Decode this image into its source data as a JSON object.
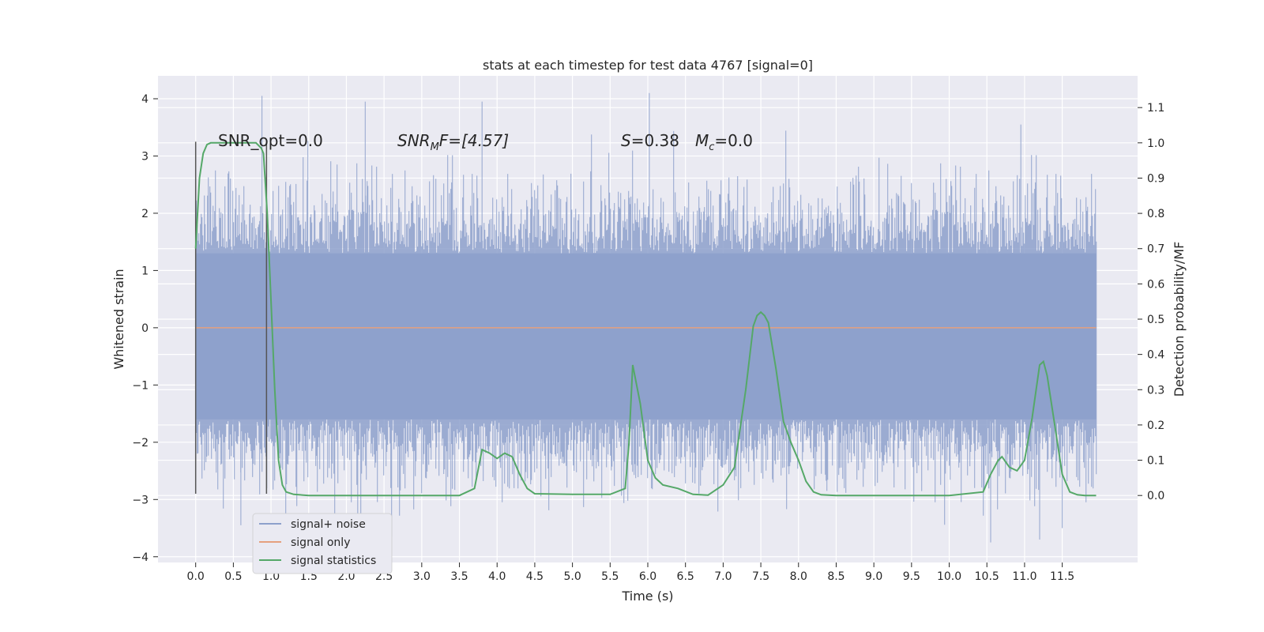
{
  "chart_data": {
    "type": "line",
    "title": "stats at each timestep for test data 4767 [signal=0]",
    "xlabel": "Time (s)",
    "ylabel": "Whitened strain",
    "y2label": "Detection probability/MF",
    "xlim": [
      -0.5,
      12.5
    ],
    "ylim": [
      -4.1,
      4.4
    ],
    "y2lim": [
      -0.19,
      1.19
    ],
    "x_ticks": [
      "0.0",
      "0.5",
      "1.0",
      "1.5",
      "2.0",
      "2.5",
      "3.0",
      "3.5",
      "4.0",
      "4.5",
      "5.0",
      "5.5",
      "6.0",
      "6.5",
      "7.0",
      "7.5",
      "8.0",
      "8.5",
      "9.0",
      "9.5",
      "10.0",
      "10.5",
      "11.0",
      "11.5"
    ],
    "y_ticks": [
      4,
      3,
      2,
      1,
      0,
      -1,
      -2,
      -3,
      -4
    ],
    "y_tick_labels": [
      "4",
      "3",
      "2",
      "1",
      "0",
      "−1",
      "−2",
      "−3",
      "−4"
    ],
    "y2_ticks": [
      1.1,
      1.0,
      0.9,
      0.8,
      0.7,
      0.6,
      0.5,
      0.4,
      0.3,
      0.2,
      0.1,
      0.0
    ],
    "y2_tick_labels": [
      "1.1",
      "1.0",
      "0.9",
      "0.8",
      "0.7",
      "0.6",
      "0.5",
      "0.4",
      "0.3",
      "0.2",
      "0.1",
      "0.0"
    ],
    "grid": true,
    "legend_position": "lower-left",
    "annotations": {
      "snr_opt": "SNR_opt=0.0",
      "snr_mf": "SNR",
      "snr_mf_sub": "M",
      "snr_mf_tail": "F=[4.57]",
      "s_label": "S",
      "s_value": "=0.38",
      "mc_label": "M",
      "mc_sub": "c",
      "mc_value": "=0.0"
    },
    "window_markers_x": [
      0.0,
      0.94
    ],
    "series": [
      {
        "name": "signal+ noise",
        "color": "#8da0cb",
        "description_range": [
          -3.7,
          4.1
        ],
        "peaks": [
          [
            0.88,
            4.05
          ],
          [
            2.25,
            3.95
          ],
          [
            3.8,
            3.95
          ],
          [
            6.02,
            4.1
          ],
          [
            10.95,
            3.55
          ],
          [
            0.6,
            -3.45
          ],
          [
            2.15,
            -3.25
          ],
          [
            2.6,
            -3.65
          ],
          [
            10.55,
            -3.75
          ],
          [
            11.2,
            -3.7
          ],
          [
            11.5,
            -3.5
          ]
        ],
        "t_range": [
          0.0,
          11.95
        ]
      },
      {
        "name": "signal only",
        "color": "#e5a07e",
        "constant": 0.0
      },
      {
        "name": "signal statistics",
        "color": "#55a868",
        "t": [
          0.0,
          0.05,
          0.1,
          0.15,
          0.2,
          0.3,
          0.5,
          0.7,
          0.8,
          0.87,
          0.9,
          0.95,
          1.0,
          1.05,
          1.1,
          1.15,
          1.2,
          1.3,
          1.5,
          2.0,
          2.5,
          3.0,
          3.5,
          3.7,
          3.8,
          3.9,
          4.0,
          4.1,
          4.2,
          4.3,
          4.4,
          4.5,
          5.0,
          5.5,
          5.7,
          5.75,
          5.8,
          5.9,
          6.0,
          6.1,
          6.2,
          6.4,
          6.6,
          6.8,
          7.0,
          7.15,
          7.3,
          7.4,
          7.45,
          7.5,
          7.55,
          7.6,
          7.7,
          7.8,
          7.9,
          8.0,
          8.1,
          8.2,
          8.3,
          8.5,
          9.0,
          10.0,
          10.45,
          10.55,
          10.65,
          10.7,
          10.8,
          10.9,
          11.0,
          11.1,
          11.2,
          11.25,
          11.3,
          11.35,
          11.4,
          11.5,
          11.6,
          11.7,
          11.8,
          11.95
        ],
        "values": [
          0.7,
          0.9,
          0.97,
          0.995,
          1.0,
          1.0,
          1.0,
          1.0,
          1.0,
          0.985,
          0.97,
          0.8,
          0.55,
          0.3,
          0.1,
          0.03,
          0.01,
          0.003,
          0.0,
          0.0,
          0.0,
          0.0,
          0.0,
          0.02,
          0.13,
          0.12,
          0.105,
          0.12,
          0.11,
          0.06,
          0.02,
          0.005,
          0.003,
          0.003,
          0.02,
          0.15,
          0.37,
          0.26,
          0.1,
          0.05,
          0.03,
          0.02,
          0.003,
          0.001,
          0.03,
          0.08,
          0.3,
          0.48,
          0.51,
          0.52,
          0.51,
          0.49,
          0.36,
          0.21,
          0.15,
          0.1,
          0.04,
          0.01,
          0.002,
          0.0,
          0.0,
          0.0,
          0.01,
          0.06,
          0.1,
          0.11,
          0.08,
          0.07,
          0.1,
          0.22,
          0.37,
          0.38,
          0.34,
          0.27,
          0.2,
          0.06,
          0.01,
          0.002,
          0.0,
          0.0
        ]
      }
    ]
  }
}
